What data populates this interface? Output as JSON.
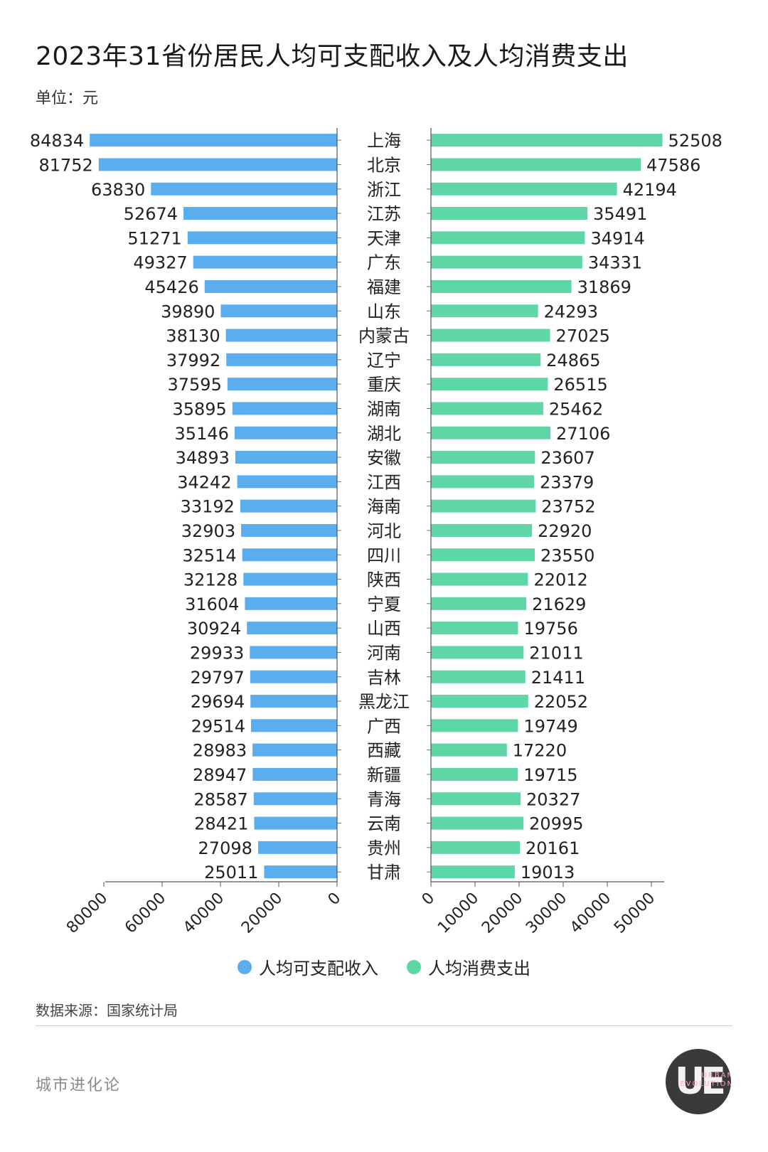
{
  "header": {
    "title": "2023年31省份居民人均可支配收入及人均消费支出",
    "unit": "单位：元"
  },
  "chart_data": {
    "type": "bar",
    "orientation": "horizontal",
    "layout": "butterfly",
    "categories": [
      "上海",
      "北京",
      "浙江",
      "江苏",
      "天津",
      "广东",
      "福建",
      "山东",
      "内蒙古",
      "辽宁",
      "重庆",
      "湖南",
      "湖北",
      "安徽",
      "江西",
      "海南",
      "河北",
      "四川",
      "陕西",
      "宁夏",
      "山西",
      "河南",
      "吉林",
      "黑龙江",
      "广西",
      "西藏",
      "新疆",
      "青海",
      "云南",
      "贵州",
      "甘肃"
    ],
    "series": [
      {
        "name": "人均可支配收入",
        "color": "#5AAEEE",
        "side": "left",
        "values": [
          84834,
          81752,
          63830,
          52674,
          51271,
          49327,
          45426,
          39890,
          38130,
          37992,
          37595,
          35895,
          35146,
          34893,
          34242,
          33192,
          32903,
          32514,
          32128,
          31604,
          30924,
          29933,
          29797,
          29694,
          29514,
          28983,
          28947,
          28587,
          28421,
          27098,
          25011
        ],
        "axis": {
          "ticks": [
            0,
            20000,
            40000,
            60000,
            80000
          ]
        }
      },
      {
        "name": "人均消费支出",
        "color": "#5ED6A6",
        "side": "right",
        "values": [
          52508,
          47586,
          42194,
          35491,
          34914,
          34331,
          31869,
          24293,
          27025,
          24865,
          26515,
          25462,
          27106,
          23607,
          23379,
          23752,
          22920,
          23550,
          22012,
          21629,
          19756,
          21011,
          21411,
          22052,
          19749,
          17220,
          19715,
          20327,
          20995,
          20161,
          19013
        ],
        "axis": {
          "ticks": [
            0,
            10000,
            20000,
            30000,
            40000,
            50000
          ]
        }
      }
    ],
    "legend": "bottom-center",
    "grid": false
  },
  "footer": {
    "source": "数据来源：国家统计局",
    "brand": "城市进化论",
    "logo_mark": "UE",
    "logo_words": "URBAN\nEVOLUTION"
  }
}
